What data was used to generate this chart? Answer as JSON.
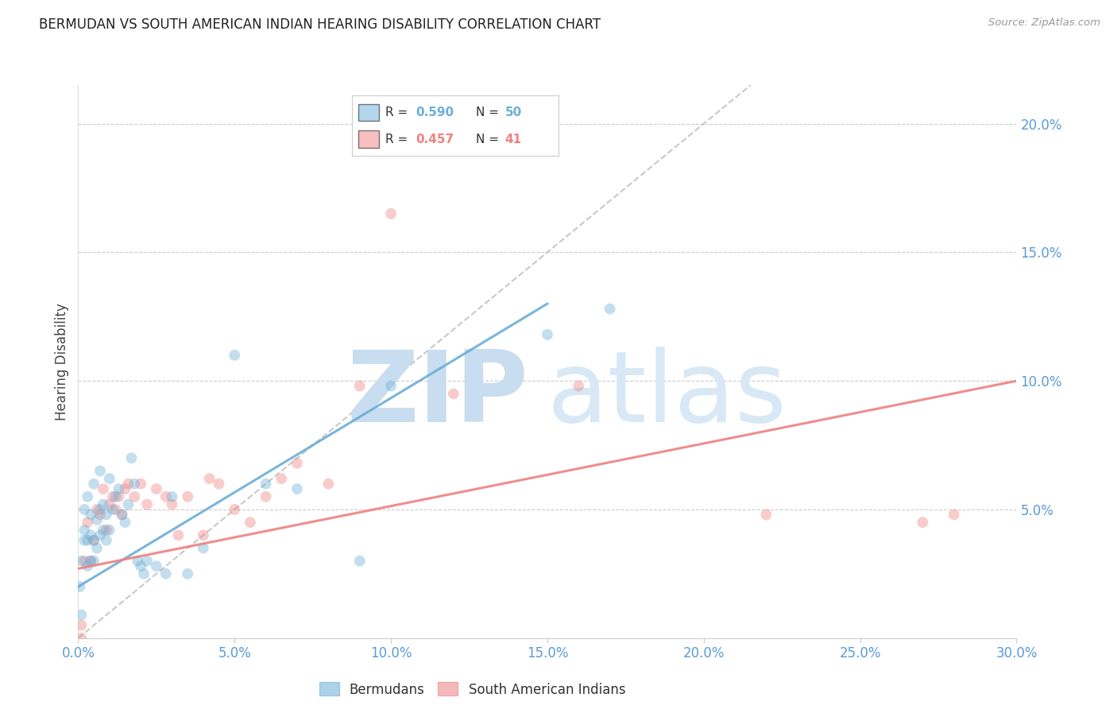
{
  "title": "BERMUDAN VS SOUTH AMERICAN INDIAN HEARING DISABILITY CORRELATION CHART",
  "source": "Source: ZipAtlas.com",
  "ylabel": "Hearing Disability",
  "xlim": [
    0.0,
    0.3
  ],
  "ylim": [
    0.0,
    0.215
  ],
  "xticks": [
    0.0,
    0.05,
    0.1,
    0.15,
    0.2,
    0.25,
    0.3
  ],
  "yticks": [
    0.05,
    0.1,
    0.15,
    0.2
  ],
  "legend_entries": [
    {
      "label": "Bermudans",
      "color": "#6BAED6",
      "R": "0.590",
      "N": "50"
    },
    {
      "label": "South American Indians",
      "color": "#F08080",
      "R": "0.457",
      "N": "41"
    }
  ],
  "blue_scatter_x": [
    0.0005,
    0.001,
    0.001,
    0.002,
    0.002,
    0.002,
    0.003,
    0.003,
    0.003,
    0.004,
    0.004,
    0.004,
    0.005,
    0.005,
    0.005,
    0.006,
    0.006,
    0.007,
    0.007,
    0.007,
    0.008,
    0.008,
    0.009,
    0.009,
    0.01,
    0.01,
    0.011,
    0.012,
    0.013,
    0.014,
    0.015,
    0.016,
    0.017,
    0.018,
    0.019,
    0.02,
    0.021,
    0.022,
    0.025,
    0.028,
    0.03,
    0.035,
    0.04,
    0.05,
    0.06,
    0.07,
    0.09,
    0.1,
    0.15,
    0.17
  ],
  "blue_scatter_y": [
    0.02,
    0.009,
    0.03,
    0.038,
    0.042,
    0.05,
    0.028,
    0.038,
    0.055,
    0.03,
    0.04,
    0.048,
    0.03,
    0.038,
    0.06,
    0.035,
    0.046,
    0.04,
    0.05,
    0.065,
    0.042,
    0.052,
    0.038,
    0.048,
    0.042,
    0.062,
    0.05,
    0.055,
    0.058,
    0.048,
    0.045,
    0.052,
    0.07,
    0.06,
    0.03,
    0.028,
    0.025,
    0.03,
    0.028,
    0.025,
    0.055,
    0.025,
    0.035,
    0.11,
    0.06,
    0.058,
    0.03,
    0.098,
    0.118,
    0.128
  ],
  "pink_scatter_x": [
    0.001,
    0.001,
    0.002,
    0.003,
    0.004,
    0.005,
    0.006,
    0.007,
    0.008,
    0.009,
    0.01,
    0.011,
    0.012,
    0.013,
    0.014,
    0.015,
    0.016,
    0.018,
    0.02,
    0.022,
    0.025,
    0.028,
    0.03,
    0.032,
    0.035,
    0.04,
    0.042,
    0.045,
    0.05,
    0.055,
    0.06,
    0.065,
    0.07,
    0.08,
    0.09,
    0.1,
    0.12,
    0.16,
    0.22,
    0.27,
    0.28
  ],
  "pink_scatter_y": [
    0.0,
    0.005,
    0.03,
    0.045,
    0.03,
    0.038,
    0.05,
    0.048,
    0.058,
    0.042,
    0.052,
    0.055,
    0.05,
    0.055,
    0.048,
    0.058,
    0.06,
    0.055,
    0.06,
    0.052,
    0.058,
    0.055,
    0.052,
    0.04,
    0.055,
    0.04,
    0.062,
    0.06,
    0.05,
    0.045,
    0.055,
    0.062,
    0.068,
    0.06,
    0.098,
    0.165,
    0.095,
    0.098,
    0.048,
    0.045,
    0.048
  ],
  "blue_line_x": [
    0.0,
    0.15
  ],
  "blue_line_y": [
    0.02,
    0.13
  ],
  "pink_line_x": [
    0.0,
    0.3
  ],
  "pink_line_y": [
    0.027,
    0.1
  ],
  "diag_line_x": [
    0.0,
    0.215
  ],
  "diag_line_y": [
    0.0,
    0.215
  ],
  "title_color": "#222222",
  "blue_color": "#6BAED6",
  "pink_color": "#F08080",
  "axis_tick_color": "#5B9BD5",
  "background_color": "#FFFFFF",
  "grid_color": "#CCCCCC",
  "watermark_zip": "ZIP",
  "watermark_atlas": "atlas",
  "watermark_color": "#DDEEFF"
}
